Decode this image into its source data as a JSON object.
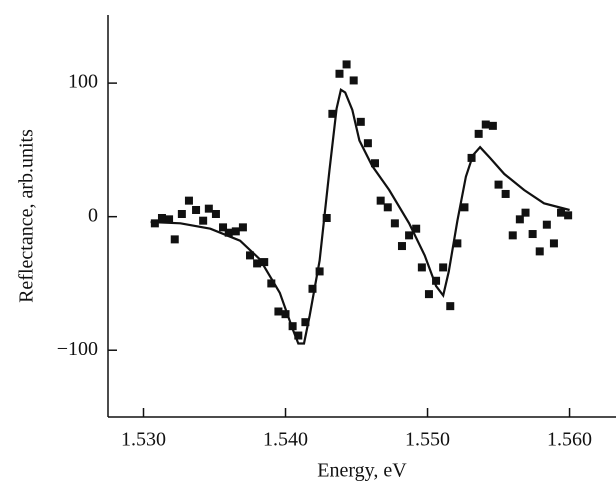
{
  "chart_data": {
    "type": "scatter",
    "x_label": "Energy, eV",
    "y_label": "Reflectance, arb.units",
    "xlim": [
      1.5275,
      1.5632
    ],
    "ylim": [
      -150,
      151
    ],
    "xticks": [
      {
        "value": 1.53,
        "label": "1.530"
      },
      {
        "value": 1.54,
        "label": "1.540"
      },
      {
        "value": 1.55,
        "label": "1.550"
      },
      {
        "value": 1.56,
        "label": "1.560"
      }
    ],
    "yticks": [
      {
        "value": -100,
        "label": "−100"
      },
      0,
      100
    ],
    "color": "#111111",
    "series": [
      {
        "style": "markers",
        "x": [
          1.5308,
          1.5313,
          1.5318,
          1.5322,
          1.5327,
          1.5332,
          1.5337,
          1.5342,
          1.5346,
          1.5351,
          1.5356,
          1.536,
          1.5365,
          1.537,
          1.5375,
          1.538,
          1.5385,
          1.539,
          1.5395,
          1.54,
          1.5405,
          1.5409,
          1.5414,
          1.5419,
          1.5424,
          1.5429,
          1.5433,
          1.5438,
          1.5443,
          1.5448,
          1.5453,
          1.5458,
          1.5463,
          1.5467,
          1.5472,
          1.5477,
          1.5482,
          1.5487,
          1.5492,
          1.5496,
          1.5501,
          1.5506,
          1.5511,
          1.5516,
          1.5521,
          1.5526,
          1.5531,
          1.5536,
          1.5541,
          1.5546,
          1.555,
          1.5555,
          1.556,
          1.5565,
          1.5569,
          1.5574,
          1.5579,
          1.5584,
          1.5589,
          1.5594,
          1.5599
        ],
        "values": [
          -5,
          -1,
          -2,
          -17,
          2,
          12,
          5,
          -3,
          6,
          2,
          -8,
          -12,
          -11,
          -8,
          -29,
          -35,
          -34,
          -50,
          -71,
          -73,
          -82,
          -89,
          -79,
          -54,
          -41,
          -1,
          77,
          107,
          114,
          102,
          71,
          55,
          40,
          12,
          7,
          -5,
          -22,
          -14,
          -9,
          -38,
          -58,
          -48,
          -38,
          -67,
          -20,
          7,
          44,
          62,
          69,
          68,
          24,
          17,
          -14,
          -2,
          3,
          -13,
          -26,
          -6,
          -20,
          3,
          1
        ]
      },
      {
        "style": "line",
        "x": [
          1.5305,
          1.5326,
          1.5347,
          1.5368,
          1.5382,
          1.5396,
          1.5405,
          1.5409,
          1.5413,
          1.5417,
          1.5424,
          1.5431,
          1.5436,
          1.5439,
          1.5442,
          1.5447,
          1.5452,
          1.5461,
          1.5473,
          1.5487,
          1.5498,
          1.5506,
          1.5511,
          1.5515,
          1.5521,
          1.5527,
          1.5532,
          1.5537,
          1.5544,
          1.5554,
          1.5568,
          1.5582,
          1.56
        ],
        "values": [
          -4,
          -5,
          -9,
          -18,
          -32,
          -57,
          -84,
          -95,
          -95,
          -74,
          -33,
          35,
          81,
          95,
          93,
          80,
          57,
          38,
          20,
          -5,
          -29,
          -52,
          -59,
          -41,
          -3,
          30,
          46,
          52,
          44,
          32,
          20,
          10,
          5
        ]
      }
    ]
  }
}
